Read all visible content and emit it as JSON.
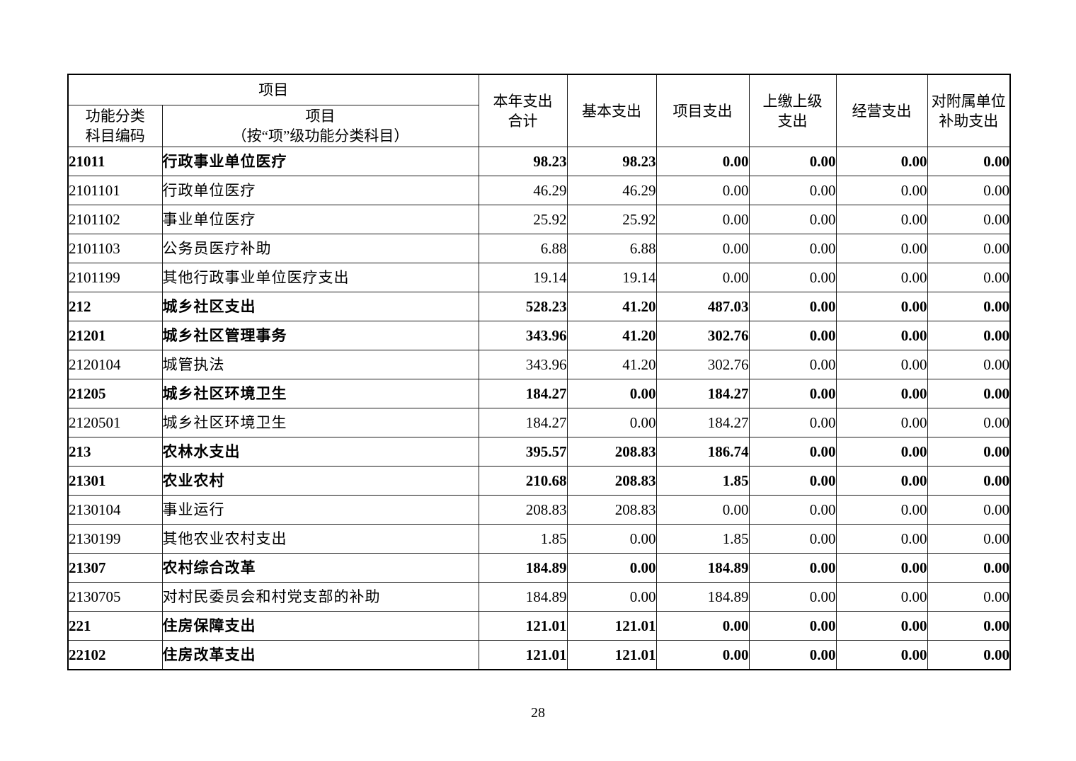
{
  "page_number": "28",
  "table": {
    "header": {
      "group": "项目",
      "code": "功能分类\n科目编码",
      "name": "项目\n（按“项”级功能分类科目）",
      "columns": [
        "本年支出\n合计",
        "基本支出",
        "项目支出",
        "上缴上级\n支出",
        "经营支出",
        "对附属单位\n补助支出"
      ]
    },
    "rows": [
      {
        "code": "21011",
        "name": "行政事业单位医疗",
        "values": [
          "98.23",
          "98.23",
          "0.00",
          "0.00",
          "0.00",
          "0.00"
        ],
        "bold": true
      },
      {
        "code": "2101101",
        "name": "行政单位医疗",
        "values": [
          "46.29",
          "46.29",
          "0.00",
          "0.00",
          "0.00",
          "0.00"
        ],
        "bold": false
      },
      {
        "code": "2101102",
        "name": "事业单位医疗",
        "values": [
          "25.92",
          "25.92",
          "0.00",
          "0.00",
          "0.00",
          "0.00"
        ],
        "bold": false
      },
      {
        "code": "2101103",
        "name": "公务员医疗补助",
        "values": [
          "6.88",
          "6.88",
          "0.00",
          "0.00",
          "0.00",
          "0.00"
        ],
        "bold": false
      },
      {
        "code": "2101199",
        "name": "其他行政事业单位医疗支出",
        "values": [
          "19.14",
          "19.14",
          "0.00",
          "0.00",
          "0.00",
          "0.00"
        ],
        "bold": false
      },
      {
        "code": "212",
        "name": "城乡社区支出",
        "values": [
          "528.23",
          "41.20",
          "487.03",
          "0.00",
          "0.00",
          "0.00"
        ],
        "bold": true
      },
      {
        "code": "21201",
        "name": "城乡社区管理事务",
        "values": [
          "343.96",
          "41.20",
          "302.76",
          "0.00",
          "0.00",
          "0.00"
        ],
        "bold": true
      },
      {
        "code": "2120104",
        "name": "城管执法",
        "values": [
          "343.96",
          "41.20",
          "302.76",
          "0.00",
          "0.00",
          "0.00"
        ],
        "bold": false
      },
      {
        "code": "21205",
        "name": "城乡社区环境卫生",
        "values": [
          "184.27",
          "0.00",
          "184.27",
          "0.00",
          "0.00",
          "0.00"
        ],
        "bold": true
      },
      {
        "code": "2120501",
        "name": "城乡社区环境卫生",
        "values": [
          "184.27",
          "0.00",
          "184.27",
          "0.00",
          "0.00",
          "0.00"
        ],
        "bold": false
      },
      {
        "code": "213",
        "name": "农林水支出",
        "values": [
          "395.57",
          "208.83",
          "186.74",
          "0.00",
          "0.00",
          "0.00"
        ],
        "bold": true
      },
      {
        "code": "21301",
        "name": "农业农村",
        "values": [
          "210.68",
          "208.83",
          "1.85",
          "0.00",
          "0.00",
          "0.00"
        ],
        "bold": true
      },
      {
        "code": "2130104",
        "name": "事业运行",
        "values": [
          "208.83",
          "208.83",
          "0.00",
          "0.00",
          "0.00",
          "0.00"
        ],
        "bold": false
      },
      {
        "code": "2130199",
        "name": "其他农业农村支出",
        "values": [
          "1.85",
          "0.00",
          "1.85",
          "0.00",
          "0.00",
          "0.00"
        ],
        "bold": false
      },
      {
        "code": "21307",
        "name": "农村综合改革",
        "values": [
          "184.89",
          "0.00",
          "184.89",
          "0.00",
          "0.00",
          "0.00"
        ],
        "bold": true
      },
      {
        "code": "2130705",
        "name": "对村民委员会和村党支部的补助",
        "values": [
          "184.89",
          "0.00",
          "184.89",
          "0.00",
          "0.00",
          "0.00"
        ],
        "bold": false
      },
      {
        "code": "221",
        "name": "住房保障支出",
        "values": [
          "121.01",
          "121.01",
          "0.00",
          "0.00",
          "0.00",
          "0.00"
        ],
        "bold": true
      },
      {
        "code": "22102",
        "name": "住房改革支出",
        "values": [
          "121.01",
          "121.01",
          "0.00",
          "0.00",
          "0.00",
          "0.00"
        ],
        "bold": true
      }
    ]
  }
}
